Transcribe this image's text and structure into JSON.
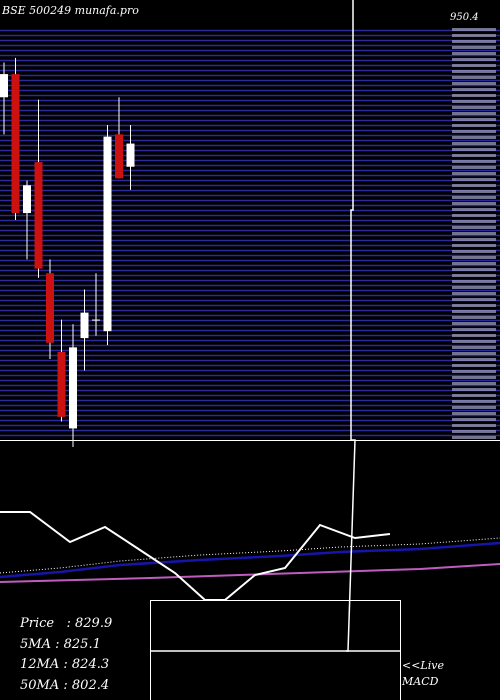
{
  "watermark": "BSE 500249 munafa.pro",
  "stats": {
    "price_label": "Price",
    "price_value": "829.9",
    "ma5_label": "5MA",
    "ma5_value": "825.1",
    "ma12_label": "12MA",
    "ma12_value": "824.3",
    "ma50_label": "50MA",
    "ma50_value": "802.4"
  },
  "live_label": "<<Live",
  "macd_label": "MACD",
  "colors": {
    "background": "#000000",
    "grid": "#2a2a9a",
    "up": "#ffffff",
    "down": "#cc1111",
    "ma_blue": "#1515a8",
    "ma_pink": "#c05cc0"
  },
  "chart_data": {
    "type": "candlestick",
    "price_range": [
      770,
      960
    ],
    "top_price_label": "950.4",
    "candles": [
      {
        "o": 918,
        "h": 933,
        "l": 902,
        "c": 928
      },
      {
        "o": 928,
        "h": 935,
        "l": 865,
        "c": 868
      },
      {
        "o": 868,
        "h": 882,
        "l": 848,
        "c": 880
      },
      {
        "o": 890,
        "h": 917,
        "l": 840,
        "c": 844
      },
      {
        "o": 842,
        "h": 848,
        "l": 805,
        "c": 812
      },
      {
        "o": 808,
        "h": 822,
        "l": 778,
        "c": 780
      },
      {
        "o": 775,
        "h": 820,
        "l": 767,
        "c": 810
      },
      {
        "o": 814,
        "h": 835,
        "l": 800,
        "c": 825
      },
      {
        "o": 822,
        "h": 842,
        "l": 815,
        "c": 822
      },
      {
        "o": 817,
        "h": 906,
        "l": 811,
        "c": 901
      },
      {
        "o": 902,
        "h": 918,
        "l": 883,
        "c": 883
      },
      {
        "o": 888,
        "h": 906,
        "l": 878,
        "c": 898
      }
    ],
    "lower_panel": {
      "y_range": [
        0,
        100
      ],
      "white_line": [
        [
          0,
          88
        ],
        [
          30,
          88
        ],
        [
          70,
          58
        ],
        [
          105,
          73
        ],
        [
          140,
          50
        ],
        [
          175,
          27
        ],
        [
          205,
          0
        ],
        [
          225,
          0
        ],
        [
          255,
          25
        ],
        [
          285,
          32
        ],
        [
          320,
          75
        ],
        [
          355,
          62
        ],
        [
          390,
          66
        ]
      ],
      "dotted_line": [
        [
          0,
          27
        ],
        [
          60,
          32
        ],
        [
          120,
          39
        ],
        [
          200,
          45
        ],
        [
          280,
          49
        ],
        [
          340,
          53
        ],
        [
          420,
          56
        ],
        [
          500,
          62
        ]
      ],
      "blue_line": [
        [
          0,
          23
        ],
        [
          60,
          28
        ],
        [
          120,
          35
        ],
        [
          200,
          40
        ],
        [
          280,
          44
        ],
        [
          340,
          48
        ],
        [
          420,
          51
        ],
        [
          500,
          57
        ]
      ],
      "pink_line": [
        [
          0,
          18
        ],
        [
          150,
          22
        ],
        [
          300,
          27
        ],
        [
          420,
          31
        ],
        [
          500,
          36
        ]
      ]
    }
  }
}
